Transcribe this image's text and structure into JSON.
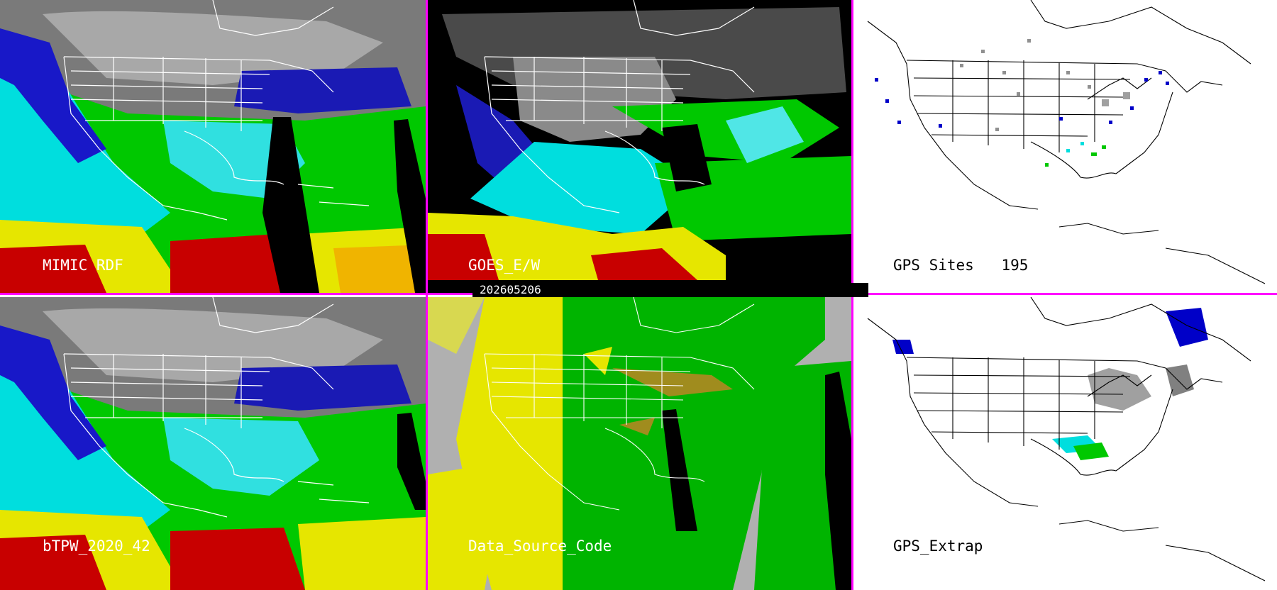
{
  "colors": {
    "panel_border": "#ff00ff",
    "moist_red": "#c80000",
    "moist_yellow": "#e6e600",
    "moist_green": "#00c800",
    "moist_cyan": "#00e6e6",
    "moist_blue": "#0000c8",
    "dry_gray": "#8c8c8c",
    "no_data": "#000000",
    "code_gray": "#b0b0b0",
    "code_yellow": "#e6e600",
    "code_green": "#00b400",
    "code_olive": "#a08c1e"
  },
  "date_stamp": "202605206",
  "panels": [
    {
      "id": "mimic-rdf",
      "label": "MIMIC RDF",
      "label_color": "#ffffff"
    },
    {
      "id": "goes-ew",
      "label": "GOES_E/W",
      "label_color": "#ffffff"
    },
    {
      "id": "gps-sites",
      "label": "GPS Sites",
      "count": "195",
      "label_color": "#000000"
    },
    {
      "id": "btpw",
      "label": "bTPW_2020_42",
      "label_color": "#ffffff"
    },
    {
      "id": "data-source-code",
      "label": "Data_Source_Code",
      "label_color": "#ffffff"
    },
    {
      "id": "gps-extrap",
      "label": "GPS_Extrap",
      "label_color": "#000000"
    }
  ]
}
